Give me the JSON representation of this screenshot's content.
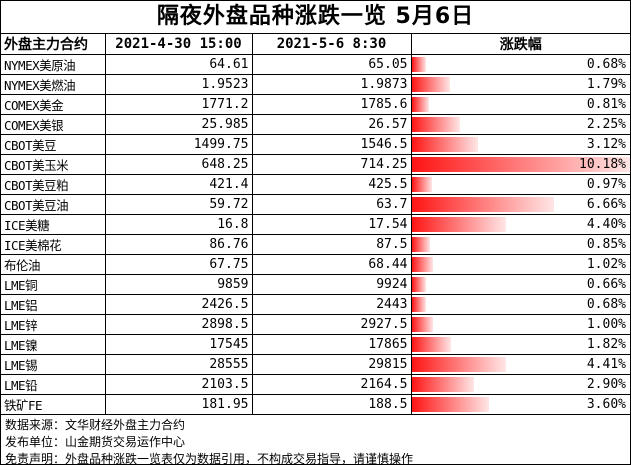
{
  "title": "隔夜外盘品种涨跌一览 5月6日",
  "headers": {
    "name": "外盘主力合约",
    "prev": "2021-4-30 15:00",
    "curr": "2021-5-6 8:30",
    "change": "涨跌幅"
  },
  "rows": [
    {
      "name": "NYMEX美原油",
      "prev": "64.61",
      "curr": "65.05",
      "change": "0.68%",
      "change_value": 0.68
    },
    {
      "name": "NYMEX美燃油",
      "prev": "1.9523",
      "curr": "1.9873",
      "change": "1.79%",
      "change_value": 1.79
    },
    {
      "name": "COMEX美金",
      "prev": "1771.2",
      "curr": "1785.6",
      "change": "0.81%",
      "change_value": 0.81
    },
    {
      "name": "COMEX美银",
      "prev": "25.985",
      "curr": "26.57",
      "change": "2.25%",
      "change_value": 2.25
    },
    {
      "name": "CBOT美豆",
      "prev": "1499.75",
      "curr": "1546.5",
      "change": "3.12%",
      "change_value": 3.12
    },
    {
      "name": "CBOT美玉米",
      "prev": "648.25",
      "curr": "714.25",
      "change": "10.18%",
      "change_value": 10.18
    },
    {
      "name": "CBOT美豆粕",
      "prev": "421.4",
      "curr": "425.5",
      "change": "0.97%",
      "change_value": 0.97
    },
    {
      "name": "CBOT美豆油",
      "prev": "59.72",
      "curr": "63.7",
      "change": "6.66%",
      "change_value": 6.66
    },
    {
      "name": "ICE美糖",
      "prev": "16.8",
      "curr": "17.54",
      "change": "4.40%",
      "change_value": 4.4
    },
    {
      "name": "ICE美棉花",
      "prev": "86.76",
      "curr": "87.5",
      "change": "0.85%",
      "change_value": 0.85
    },
    {
      "name": "布伦油",
      "prev": "67.75",
      "curr": "68.44",
      "change": "1.02%",
      "change_value": 1.02
    },
    {
      "name": "LME铜",
      "prev": "9859",
      "curr": "9924",
      "change": "0.66%",
      "change_value": 0.66
    },
    {
      "name": "LME铝",
      "prev": "2426.5",
      "curr": "2443",
      "change": "0.68%",
      "change_value": 0.68
    },
    {
      "name": "LME锌",
      "prev": "2898.5",
      "curr": "2927.5",
      "change": "1.00%",
      "change_value": 1.0
    },
    {
      "name": "LME镍",
      "prev": "17545",
      "curr": "17865",
      "change": "1.82%",
      "change_value": 1.82
    },
    {
      "name": "LME锡",
      "prev": "28555",
      "curr": "29815",
      "change": "4.41%",
      "change_value": 4.41
    },
    {
      "name": "LME铅",
      "prev": "2103.5",
      "curr": "2164.5",
      "change": "2.90%",
      "change_value": 2.9
    },
    {
      "name": "铁矿FE",
      "prev": "181.95",
      "curr": "188.5",
      "change": "3.60%",
      "change_value": 3.6
    }
  ],
  "bar_color": "#ff1414",
  "footer": [
    "数据来源：文华财经外盘主力合约",
    "发布单位：山金期货交易运作中心",
    "免责声明：外盘品种涨跌一览表仅为数据引用，不构成交易指导，请谨慎操作"
  ]
}
